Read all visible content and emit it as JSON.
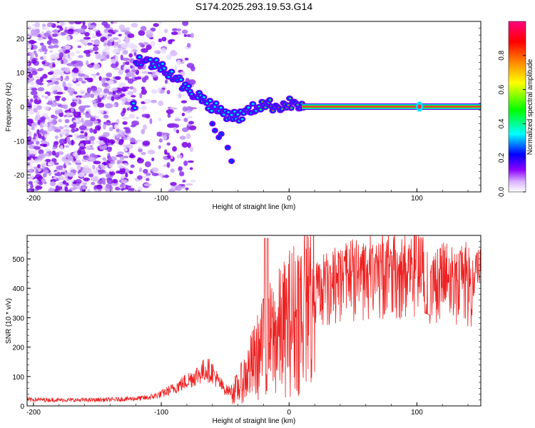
{
  "title": "S174.2025.293.19.53.G14",
  "chart_data": [
    {
      "type": "heatmap",
      "title": "S174.2025.293.19.53.G14",
      "xlabel": "Height of straight line (km)",
      "ylabel": "Frequency (Hz)",
      "xlim": [
        -205,
        150
      ],
      "ylim": [
        -25,
        25
      ],
      "x_ticks": [
        -200,
        -100,
        0,
        100
      ],
      "y_ticks": [
        -20,
        -10,
        0,
        10,
        20
      ],
      "colorbar": {
        "label": "Normalized spectral amplitude",
        "range": [
          0,
          1
        ],
        "ticks": [
          "0.0",
          "0.2",
          "0.4",
          "0.6",
          "0.8"
        ],
        "colors": [
          "#ffffff",
          "#8c00ff",
          "#0000ff",
          "#00ffff",
          "#00ff00",
          "#ffff00",
          "#ff8800",
          "#ff0000",
          "#ff0080"
        ]
      },
      "ridge": [
        {
          "x": -120,
          "y": 14
        },
        {
          "x": -110,
          "y": 13
        },
        {
          "x": -100,
          "y": 12
        },
        {
          "x": -90,
          "y": 9
        },
        {
          "x": -80,
          "y": 5
        },
        {
          "x": -70,
          "y": 3
        },
        {
          "x": -60,
          "y": 0
        },
        {
          "x": -50,
          "y": -2
        },
        {
          "x": -40,
          "y": -3
        },
        {
          "x": -30,
          "y": -1
        },
        {
          "x": -20,
          "y": 1
        },
        {
          "x": -10,
          "y": 0
        },
        {
          "x": 0,
          "y": 1
        },
        {
          "x": 10,
          "y": 0
        },
        {
          "x": 150,
          "y": 0
        }
      ]
    },
    {
      "type": "line",
      "xlabel": "Height of straight line (km)",
      "ylabel": "SNR (10 * v/v)",
      "xlim": [
        -205,
        150
      ],
      "ylim": [
        0,
        580
      ],
      "x_ticks": [
        -200,
        -100,
        0,
        100
      ],
      "y_ticks": [
        0,
        100,
        200,
        300,
        400,
        500
      ],
      "series": [
        {
          "name": "SNR",
          "color": "#ee2222",
          "x": [
            -205,
            -180,
            -160,
            -140,
            -120,
            -110,
            -100,
            -90,
            -80,
            -70,
            -65,
            -60,
            -55,
            -50,
            -45,
            -40,
            -35,
            -30,
            -25,
            -20,
            -15,
            -10,
            -5,
            0,
            10,
            20,
            30,
            40,
            50,
            60,
            70,
            80,
            90,
            100,
            110,
            120,
            130,
            140,
            150
          ],
          "values": [
            22,
            20,
            20,
            21,
            25,
            28,
            40,
            60,
            85,
            110,
            125,
            115,
            80,
            55,
            50,
            60,
            95,
            130,
            165,
            200,
            225,
            240,
            260,
            285,
            330,
            375,
            400,
            420,
            430,
            440,
            445,
            440,
            440,
            445,
            430,
            420,
            420,
            415,
            410
          ]
        }
      ]
    }
  ]
}
